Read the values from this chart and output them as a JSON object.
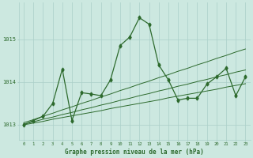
{
  "x": [
    0,
    1,
    2,
    3,
    4,
    5,
    6,
    7,
    8,
    9,
    10,
    11,
    12,
    13,
    14,
    15,
    16,
    17,
    18,
    19,
    20,
    21,
    22,
    23
  ],
  "y": [
    1013.0,
    1013.1,
    1013.2,
    1013.5,
    1014.3,
    1013.1,
    1013.75,
    1013.72,
    1013.68,
    1014.05,
    1014.85,
    1015.05,
    1015.5,
    1015.35,
    1014.4,
    1014.05,
    1013.58,
    1013.62,
    1013.62,
    1013.95,
    1014.12,
    1014.32,
    1013.68,
    1014.12
  ],
  "trend1": [
    1013.0,
    1013.04,
    1013.08,
    1013.13,
    1013.17,
    1013.21,
    1013.25,
    1013.29,
    1013.33,
    1013.38,
    1013.42,
    1013.46,
    1013.5,
    1013.54,
    1013.58,
    1013.63,
    1013.67,
    1013.71,
    1013.75,
    1013.79,
    1013.83,
    1013.88,
    1013.92,
    1013.96
  ],
  "trend2": [
    1013.02,
    1013.07,
    1013.13,
    1013.18,
    1013.24,
    1013.29,
    1013.35,
    1013.4,
    1013.46,
    1013.51,
    1013.57,
    1013.62,
    1013.68,
    1013.73,
    1013.79,
    1013.84,
    1013.9,
    1013.95,
    1014.01,
    1014.06,
    1014.12,
    1014.17,
    1014.23,
    1014.28
  ],
  "trend3": [
    1013.05,
    1013.12,
    1013.2,
    1013.27,
    1013.35,
    1013.42,
    1013.5,
    1013.57,
    1013.65,
    1013.72,
    1013.8,
    1013.87,
    1013.95,
    1014.02,
    1014.1,
    1014.17,
    1014.25,
    1014.32,
    1014.4,
    1014.47,
    1014.55,
    1014.62,
    1014.7,
    1014.77
  ],
  "line_color": "#2d6a2d",
  "bg_color": "#cce8e0",
  "grid_color": "#aacfc8",
  "xlabel": "Graphe pression niveau de la mer (hPa)",
  "yticks": [
    1013,
    1014,
    1015
  ],
  "xticks": [
    0,
    1,
    2,
    3,
    4,
    5,
    6,
    7,
    8,
    9,
    10,
    11,
    12,
    13,
    14,
    15,
    16,
    17,
    18,
    19,
    20,
    21,
    22,
    23
  ],
  "ylim": [
    1012.65,
    1015.85
  ],
  "xlim": [
    -0.5,
    23.5
  ]
}
